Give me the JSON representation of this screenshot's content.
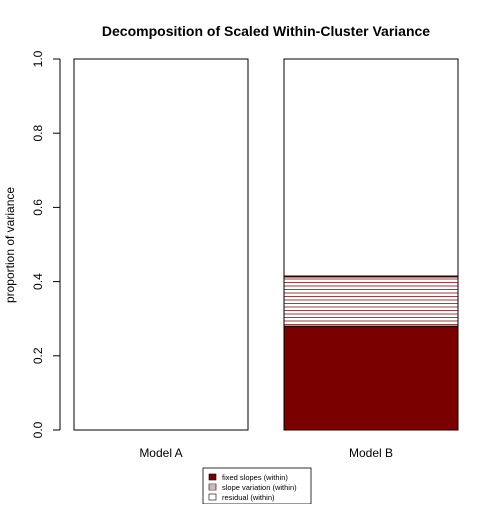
{
  "chart_data": {
    "type": "bar",
    "stacked": true,
    "title": "Decomposition of Scaled Within-Cluster Variance",
    "xlabel": "",
    "ylabel": "proportion of variance",
    "ylim": [
      0,
      1.0
    ],
    "yticks": [
      "0.0",
      "0.2",
      "0.4",
      "0.6",
      "0.8",
      "1.0"
    ],
    "categories": [
      "Model A",
      "Model B"
    ],
    "series": [
      {
        "name": "fixed slopes (within)",
        "color": "#7a0000",
        "fill": "solid",
        "values": [
          0.0,
          0.28
        ]
      },
      {
        "name": "slope variation (within)",
        "color": "#7a0000",
        "fill": "horizontal-lines",
        "values": [
          0.0,
          0.135
        ]
      },
      {
        "name": "residual (within)",
        "color": "#ffffff",
        "fill": "empty",
        "values": [
          1.0,
          0.585
        ]
      }
    ],
    "legend_position": "bottom-center",
    "grid": false
  }
}
